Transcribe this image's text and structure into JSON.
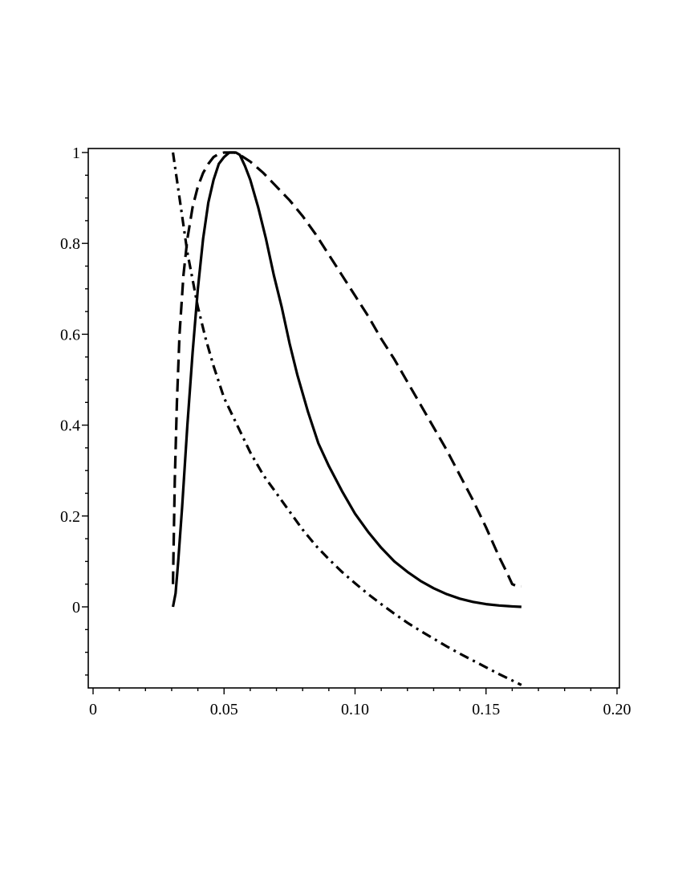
{
  "chart_data": {
    "type": "line",
    "title": "",
    "xlabel": "",
    "ylabel": "",
    "xlim": [
      -0.001,
      0.2
    ],
    "ylim": [
      -0.18,
      1.01
    ],
    "grid": false,
    "legend": "none",
    "x_ticks": [
      {
        "value": 0,
        "label": "0"
      },
      {
        "value": 0.05,
        "label": "0.05"
      },
      {
        "value": 0.1,
        "label": "0.10"
      },
      {
        "value": 0.15,
        "label": "0.15"
      },
      {
        "value": 0.2,
        "label": "0.20"
      }
    ],
    "y_ticks": [
      {
        "value": 0,
        "label": "0"
      },
      {
        "value": 0.2,
        "label": "0.2"
      },
      {
        "value": 0.4,
        "label": "0.4"
      },
      {
        "value": 0.6,
        "label": "0.6"
      },
      {
        "value": 0.8,
        "label": "0.8"
      },
      {
        "value": 1,
        "label": "1"
      }
    ],
    "series": [
      {
        "style": "solid",
        "color": "#000000",
        "x": [
          0.0305,
          0.0315,
          0.0325,
          0.034,
          0.036,
          0.038,
          0.04,
          0.042,
          0.044,
          0.046,
          0.048,
          0.05,
          0.052,
          0.053,
          0.0545,
          0.056,
          0.058,
          0.06,
          0.063,
          0.066,
          0.069,
          0.072,
          0.075,
          0.078,
          0.082,
          0.086,
          0.09,
          0.095,
          0.1,
          0.105,
          0.11,
          0.115,
          0.12,
          0.125,
          0.13,
          0.135,
          0.14,
          0.145,
          0.15,
          0.155,
          0.16,
          0.1635
        ],
        "y": [
          0.0,
          0.03,
          0.1,
          0.22,
          0.4,
          0.56,
          0.7,
          0.81,
          0.89,
          0.94,
          0.975,
          0.99,
          1.0,
          1.0,
          1.0,
          0.995,
          0.97,
          0.94,
          0.88,
          0.81,
          0.73,
          0.66,
          0.58,
          0.51,
          0.43,
          0.36,
          0.31,
          0.255,
          0.205,
          0.165,
          0.13,
          0.1,
          0.077,
          0.057,
          0.041,
          0.028,
          0.018,
          0.011,
          0.006,
          0.003,
          0.001,
          0.0
        ]
      },
      {
        "style": "dashed",
        "color": "#000000",
        "x": [
          0.0305,
          0.0308,
          0.0312,
          0.032,
          0.033,
          0.0345,
          0.036,
          0.038,
          0.04,
          0.042,
          0.044,
          0.046,
          0.048,
          0.05,
          0.052,
          0.054,
          0.056,
          0.06,
          0.065,
          0.07,
          0.075,
          0.08,
          0.085,
          0.09,
          0.095,
          0.1,
          0.105,
          0.11,
          0.115,
          0.12,
          0.125,
          0.13,
          0.135,
          0.14,
          0.145,
          0.15,
          0.155,
          0.158,
          0.16,
          0.162,
          0.1635
        ],
        "y": [
          0.05,
          0.15,
          0.28,
          0.45,
          0.6,
          0.73,
          0.81,
          0.88,
          0.925,
          0.955,
          0.975,
          0.99,
          0.997,
          1.0,
          1.0,
          1.0,
          0.995,
          0.98,
          0.955,
          0.925,
          0.895,
          0.86,
          0.82,
          0.775,
          0.73,
          0.685,
          0.64,
          0.59,
          0.545,
          0.495,
          0.445,
          0.395,
          0.345,
          0.29,
          0.235,
          0.175,
          0.11,
          0.075,
          0.05,
          0.045,
          0.045
        ]
      },
      {
        "style": "dash-dot",
        "color": "#000000",
        "x": [
          0.0305,
          0.032,
          0.034,
          0.036,
          0.038,
          0.04,
          0.043,
          0.046,
          0.05,
          0.055,
          0.06,
          0.065,
          0.07,
          0.075,
          0.08,
          0.085,
          0.09,
          0.095,
          0.1,
          0.105,
          0.11,
          0.115,
          0.12,
          0.125,
          0.13,
          0.135,
          0.14,
          0.145,
          0.15,
          0.155,
          0.16,
          0.1635
        ],
        "y": [
          1.0,
          0.94,
          0.86,
          0.78,
          0.72,
          0.66,
          0.59,
          0.53,
          0.46,
          0.4,
          0.34,
          0.29,
          0.25,
          0.21,
          0.17,
          0.135,
          0.105,
          0.077,
          0.052,
          0.028,
          0.006,
          -0.015,
          -0.035,
          -0.053,
          -0.07,
          -0.087,
          -0.103,
          -0.118,
          -0.133,
          -0.148,
          -0.162,
          -0.172
        ]
      }
    ]
  }
}
